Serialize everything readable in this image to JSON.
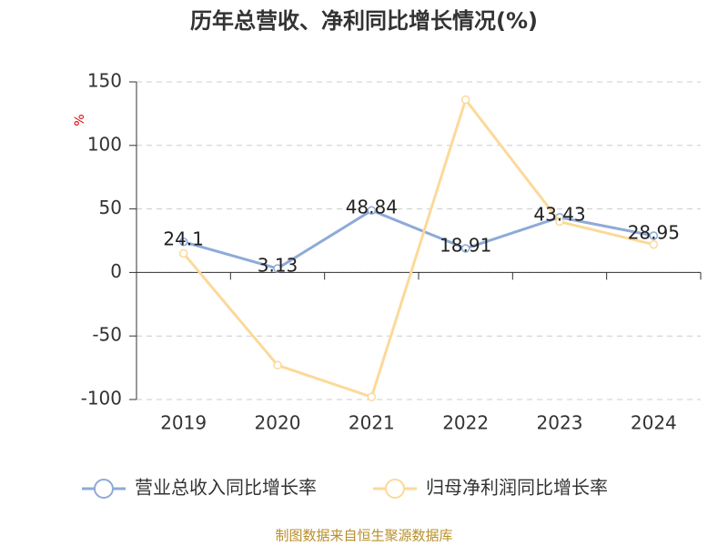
{
  "chart_data": {
    "type": "line",
    "title": "历年总营收、净利同比增长情况(%)",
    "y_unit": "%",
    "categories": [
      "2019",
      "2020",
      "2021",
      "2022",
      "2023",
      "2024"
    ],
    "series": [
      {
        "name": "营业总收入同比增长率",
        "color": "#8eaad8",
        "values": [
          24.1,
          3.13,
          48.84,
          18.91,
          43.43,
          28.95
        ],
        "show_labels": true
      },
      {
        "name": "归母净利润同比增长率",
        "color": "#fcd99a",
        "values": [
          15,
          -73,
          -98,
          136,
          40,
          22
        ],
        "show_labels": false
      }
    ],
    "ylim": [
      -100,
      150
    ],
    "yticks": [
      -100,
      -50,
      0,
      50,
      100,
      150
    ],
    "grid": true,
    "legend": "bottom",
    "source": "制图数据来自恒生聚源数据库"
  }
}
